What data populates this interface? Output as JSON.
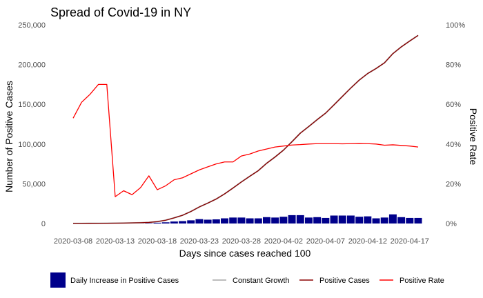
{
  "chart_data": {
    "type": "bar+line",
    "title": "Spread of Covid-19 in NY",
    "xlabel": "Days since cases reached 100",
    "ylabel_left": "Number of Positive Cases",
    "ylabel_right": "Positive Rate",
    "ylim_left": [
      0,
      250000
    ],
    "ylim_right": [
      0,
      1
    ],
    "y_ticks_left": [
      "0",
      "50,000",
      "100,000",
      "150,000",
      "200,000",
      "250,000"
    ],
    "y_ticks_right": [
      "0%",
      "20%",
      "40%",
      "60%",
      "80%",
      "100%"
    ],
    "x_tick_labels": [
      "2020-03-08",
      "2020-03-13",
      "2020-03-18",
      "2020-03-23",
      "2020-03-28",
      "2020-04-02",
      "2020-04-07",
      "2020-04-12",
      "2020-04-17"
    ],
    "x": [
      "2020-03-08",
      "2020-03-09",
      "2020-03-10",
      "2020-03-11",
      "2020-03-12",
      "2020-03-13",
      "2020-03-14",
      "2020-03-15",
      "2020-03-16",
      "2020-03-17",
      "2020-03-18",
      "2020-03-19",
      "2020-03-20",
      "2020-03-21",
      "2020-03-22",
      "2020-03-23",
      "2020-03-24",
      "2020-03-25",
      "2020-03-26",
      "2020-03-27",
      "2020-03-28",
      "2020-03-29",
      "2020-03-30",
      "2020-03-31",
      "2020-04-01",
      "2020-04-02",
      "2020-04-03",
      "2020-04-04",
      "2020-04-05",
      "2020-04-06",
      "2020-04-07",
      "2020-04-08",
      "2020-04-09",
      "2020-04-10",
      "2020-04-11",
      "2020-04-12",
      "2020-04-13",
      "2020-04-14",
      "2020-04-15",
      "2020-04-16",
      "2020-04-17",
      "2020-04-18"
    ],
    "grid": false,
    "legend_position": "bottom",
    "series": [
      {
        "name": "Daily Increase in Positive Cases",
        "type": "bar",
        "axis": "left",
        "color": "#00008b",
        "values": [
          0,
          20,
          30,
          50,
          60,
          90,
          110,
          150,
          200,
          500,
          1000,
          1500,
          2500,
          3000,
          4000,
          5500,
          4800,
          5200,
          6500,
          7500,
          7500,
          6500,
          6500,
          8000,
          7500,
          8500,
          10500,
          10500,
          7500,
          8000,
          7000,
          10000,
          10000,
          10000,
          8500,
          9000,
          6500,
          7500,
          11500,
          8000,
          7000,
          7000
        ]
      },
      {
        "name": "Constant Growth",
        "type": "line",
        "axis": "left",
        "color": "#a6a6a6",
        "values": [
          105,
          142,
          173,
          216,
          325,
          421,
          524,
          729,
          950,
          1374,
          2382,
          4152,
          7102,
          10356,
          15168,
          20875,
          25665,
          30811,
          37258,
          44635,
          52318,
          59513,
          66497,
          75795,
          83712,
          92381,
          102863,
          113704,
          122031,
          130689,
          138863,
          149316,
          159937,
          170512,
          180458,
          188694,
          195031,
          202208,
          213779,
          222284,
          229642,
          236732
        ]
      },
      {
        "name": "Positive Cases",
        "type": "line",
        "axis": "left",
        "color": "#8b0000",
        "values": [
          105,
          142,
          173,
          216,
          325,
          421,
          524,
          729,
          950,
          1374,
          2382,
          4152,
          7102,
          10356,
          15168,
          20875,
          25665,
          30811,
          37258,
          44635,
          52318,
          59513,
          66497,
          75795,
          83712,
          92381,
          102863,
          113704,
          122031,
          130689,
          138863,
          149316,
          159937,
          170512,
          180458,
          188694,
          195031,
          202208,
          213779,
          222284,
          229642,
          236732
        ]
      },
      {
        "name": "Positive Rate",
        "type": "line",
        "axis": "right",
        "color": "#ff0000",
        "values": [
          0.53,
          0.61,
          0.65,
          0.7,
          0.7,
          0.135,
          0.165,
          0.145,
          0.18,
          0.24,
          0.17,
          0.19,
          0.22,
          0.23,
          0.25,
          0.27,
          0.285,
          0.3,
          0.31,
          0.31,
          0.34,
          0.35,
          0.365,
          0.375,
          0.385,
          0.39,
          0.395,
          0.397,
          0.4,
          0.402,
          0.402,
          0.402,
          0.401,
          0.402,
          0.403,
          0.402,
          0.4,
          0.394,
          0.396,
          0.393,
          0.39,
          0.385
        ]
      }
    ]
  }
}
